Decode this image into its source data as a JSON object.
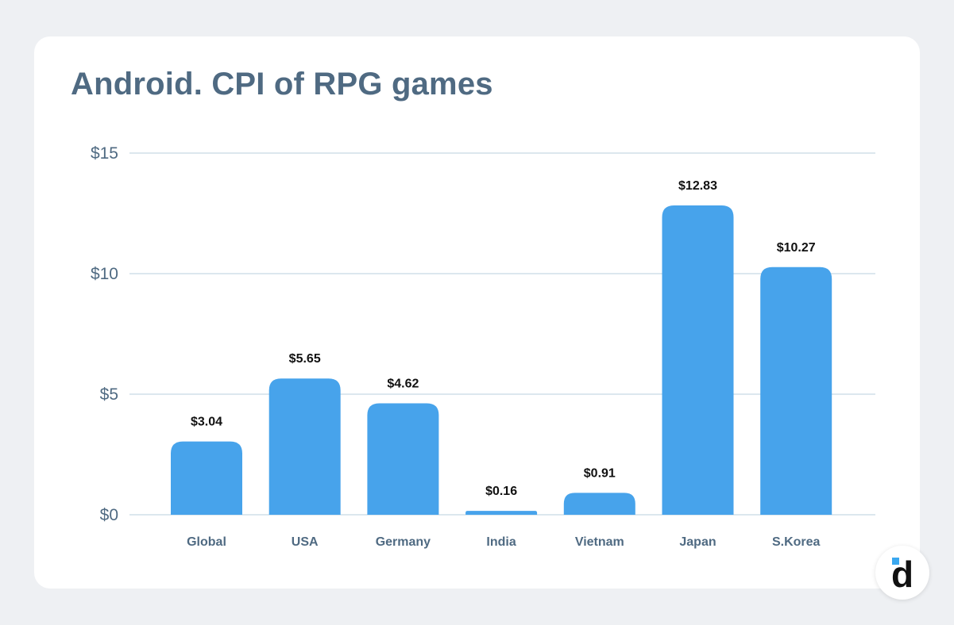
{
  "title": "Android. CPI of RPG games",
  "colors": {
    "bar": "#47a3eb",
    "grid": "#b8cfdc",
    "axis_text": "#4f6a82",
    "label_text": "#111111",
    "logo_accent": "#3aa8f0"
  },
  "logo": {
    "icon": "devtodev-logo-icon",
    "letter": "d"
  },
  "chart_data": {
    "type": "bar",
    "title": "Android. CPI of RPG games",
    "categories": [
      "Global",
      "USA",
      "Germany",
      "India",
      "Vietnam",
      "Japan",
      "S.Korea"
    ],
    "values": [
      3.04,
      5.65,
      4.62,
      0.16,
      0.91,
      12.83,
      10.27
    ],
    "value_labels": [
      "$3.04",
      "$5.65",
      "$4.62",
      "$0.16",
      "$0.91",
      "$12.83",
      "$10.27"
    ],
    "xlabel": "",
    "ylabel": "",
    "ylim": [
      0,
      15
    ],
    "yticks": [
      0,
      5,
      10,
      15
    ],
    "ytick_labels": [
      "$0",
      "$5",
      "$10",
      "$15"
    ],
    "grid": true,
    "legend": "none"
  }
}
